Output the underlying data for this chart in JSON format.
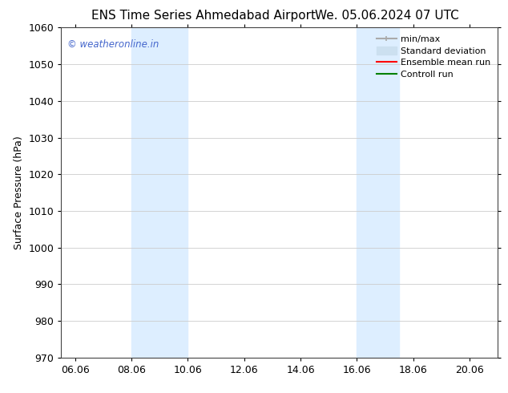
{
  "title_left": "ENS Time Series Ahmedabad Airport",
  "title_right": "We. 05.06.2024 07 UTC",
  "ylabel": "Surface Pressure (hPa)",
  "ylim": [
    970,
    1060
  ],
  "yticks": [
    970,
    980,
    990,
    1000,
    1010,
    1020,
    1030,
    1040,
    1050,
    1060
  ],
  "xtick_labels": [
    "06.06",
    "08.06",
    "10.06",
    "12.06",
    "14.06",
    "16.06",
    "18.06",
    "20.06"
  ],
  "xtick_positions": [
    0,
    2,
    4,
    6,
    8,
    10,
    12,
    14
  ],
  "xlim": [
    -0.5,
    15.0
  ],
  "shaded_bands": [
    {
      "x_start": 2,
      "x_end": 4,
      "color": "#ddeeff"
    },
    {
      "x_start": 10,
      "x_end": 11.5,
      "color": "#ddeeff"
    }
  ],
  "watermark_text": "© weatheronline.in",
  "watermark_color": "#4466cc",
  "legend_entries": [
    {
      "label": "min/max",
      "color": "#aaaaaa",
      "lw": 1.5,
      "linestyle": "-",
      "type": "errorbar"
    },
    {
      "label": "Standard deviation",
      "color": "#cce0f0",
      "lw": 8,
      "linestyle": "-",
      "type": "patch"
    },
    {
      "label": "Ensemble mean run",
      "color": "red",
      "lw": 1.5,
      "linestyle": "-",
      "type": "line"
    },
    {
      "label": "Controll run",
      "color": "green",
      "lw": 1.5,
      "linestyle": "-",
      "type": "line"
    }
  ],
  "background_color": "#ffffff",
  "grid_color": "#cccccc",
  "title_fontsize": 11,
  "axis_fontsize": 9,
  "tick_fontsize": 9,
  "legend_fontsize": 8
}
